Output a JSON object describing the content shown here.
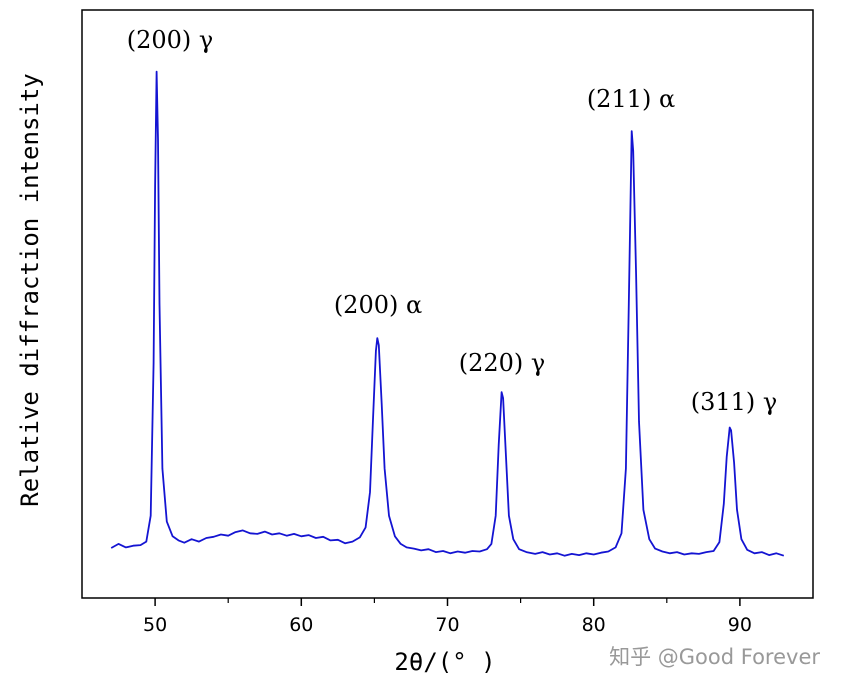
{
  "chart_data": {
    "type": "line",
    "x_label": "2θ/(° )",
    "y_label": "Relative diffraction intensity",
    "xlim": [
      45,
      95
    ],
    "ylim": [
      0,
      100
    ],
    "xticks": [
      50,
      60,
      70,
      80,
      90
    ],
    "xminorticks": [
      55,
      65,
      75,
      85
    ],
    "annotations": [
      "(200) γ",
      "(200) α",
      "(220) γ",
      "(211) α",
      "(311) γ"
    ],
    "watermark": "知乎 @Good Forever",
    "series": [
      {
        "color": "#1414d2",
        "x": [
          47.0,
          47.5,
          48.0,
          48.5,
          49.0,
          49.4,
          49.7,
          49.9,
          50.0,
          50.1,
          50.2,
          50.3,
          50.5,
          50.8,
          51.2,
          51.6,
          52.0,
          52.5,
          53.0,
          53.5,
          54.0,
          54.5,
          55.0,
          55.5,
          56.0,
          56.5,
          57.0,
          57.5,
          58.0,
          58.5,
          59.0,
          59.5,
          60.0,
          60.5,
          61.0,
          61.5,
          62.0,
          62.5,
          63.0,
          63.5,
          64.0,
          64.4,
          64.7,
          64.9,
          65.1,
          65.2,
          65.3,
          65.5,
          65.7,
          66.0,
          66.4,
          66.8,
          67.2,
          67.7,
          68.2,
          68.7,
          69.2,
          69.7,
          70.2,
          70.7,
          71.2,
          71.7,
          72.2,
          72.7,
          73.0,
          73.3,
          73.5,
          73.7,
          73.8,
          74.0,
          74.2,
          74.5,
          74.9,
          75.4,
          76.0,
          76.5,
          77.0,
          77.5,
          78.0,
          78.5,
          79.0,
          79.5,
          80.0,
          80.5,
          81.0,
          81.5,
          81.9,
          82.2,
          82.4,
          82.6,
          82.7,
          82.9,
          83.1,
          83.4,
          83.8,
          84.2,
          84.7,
          85.2,
          85.7,
          86.2,
          86.7,
          87.2,
          87.7,
          88.2,
          88.6,
          88.9,
          89.1,
          89.3,
          89.4,
          89.6,
          89.8,
          90.1,
          90.5,
          91.0,
          91.5,
          92.0,
          92.5,
          93.0
        ],
        "values": [
          8.5,
          9.2,
          8.6,
          8.9,
          9.0,
          9.6,
          14,
          40,
          70,
          89.5,
          78,
          50,
          22,
          13,
          10.5,
          9.8,
          9.4,
          10.0,
          9.6,
          10.2,
          10.4,
          10.8,
          10.6,
          11.2,
          11.5,
          11.0,
          10.9,
          11.3,
          10.8,
          11.0,
          10.6,
          10.9,
          10.5,
          10.7,
          10.2,
          10.4,
          9.8,
          9.9,
          9.3,
          9.6,
          10.3,
          12,
          18,
          30,
          42,
          44.2,
          43,
          33,
          22,
          14,
          10.5,
          9.2,
          8.6,
          8.4,
          8.1,
          8.3,
          7.8,
          8.0,
          7.6,
          7.9,
          7.7,
          8.0,
          7.9,
          8.3,
          9.2,
          14,
          26,
          35,
          34,
          24,
          14,
          10,
          8.3,
          7.8,
          7.5,
          7.8,
          7.4,
          7.6,
          7.2,
          7.5,
          7.3,
          7.6,
          7.4,
          7.7,
          7.9,
          8.6,
          11,
          22,
          50,
          79.4,
          76,
          55,
          30,
          15,
          10,
          8.4,
          7.9,
          7.6,
          7.8,
          7.4,
          7.6,
          7.5,
          7.8,
          8.0,
          9.5,
          16,
          24,
          29,
          28.5,
          23,
          15,
          10,
          8.2,
          7.6,
          7.8,
          7.3,
          7.6,
          7.2
        ]
      }
    ]
  }
}
